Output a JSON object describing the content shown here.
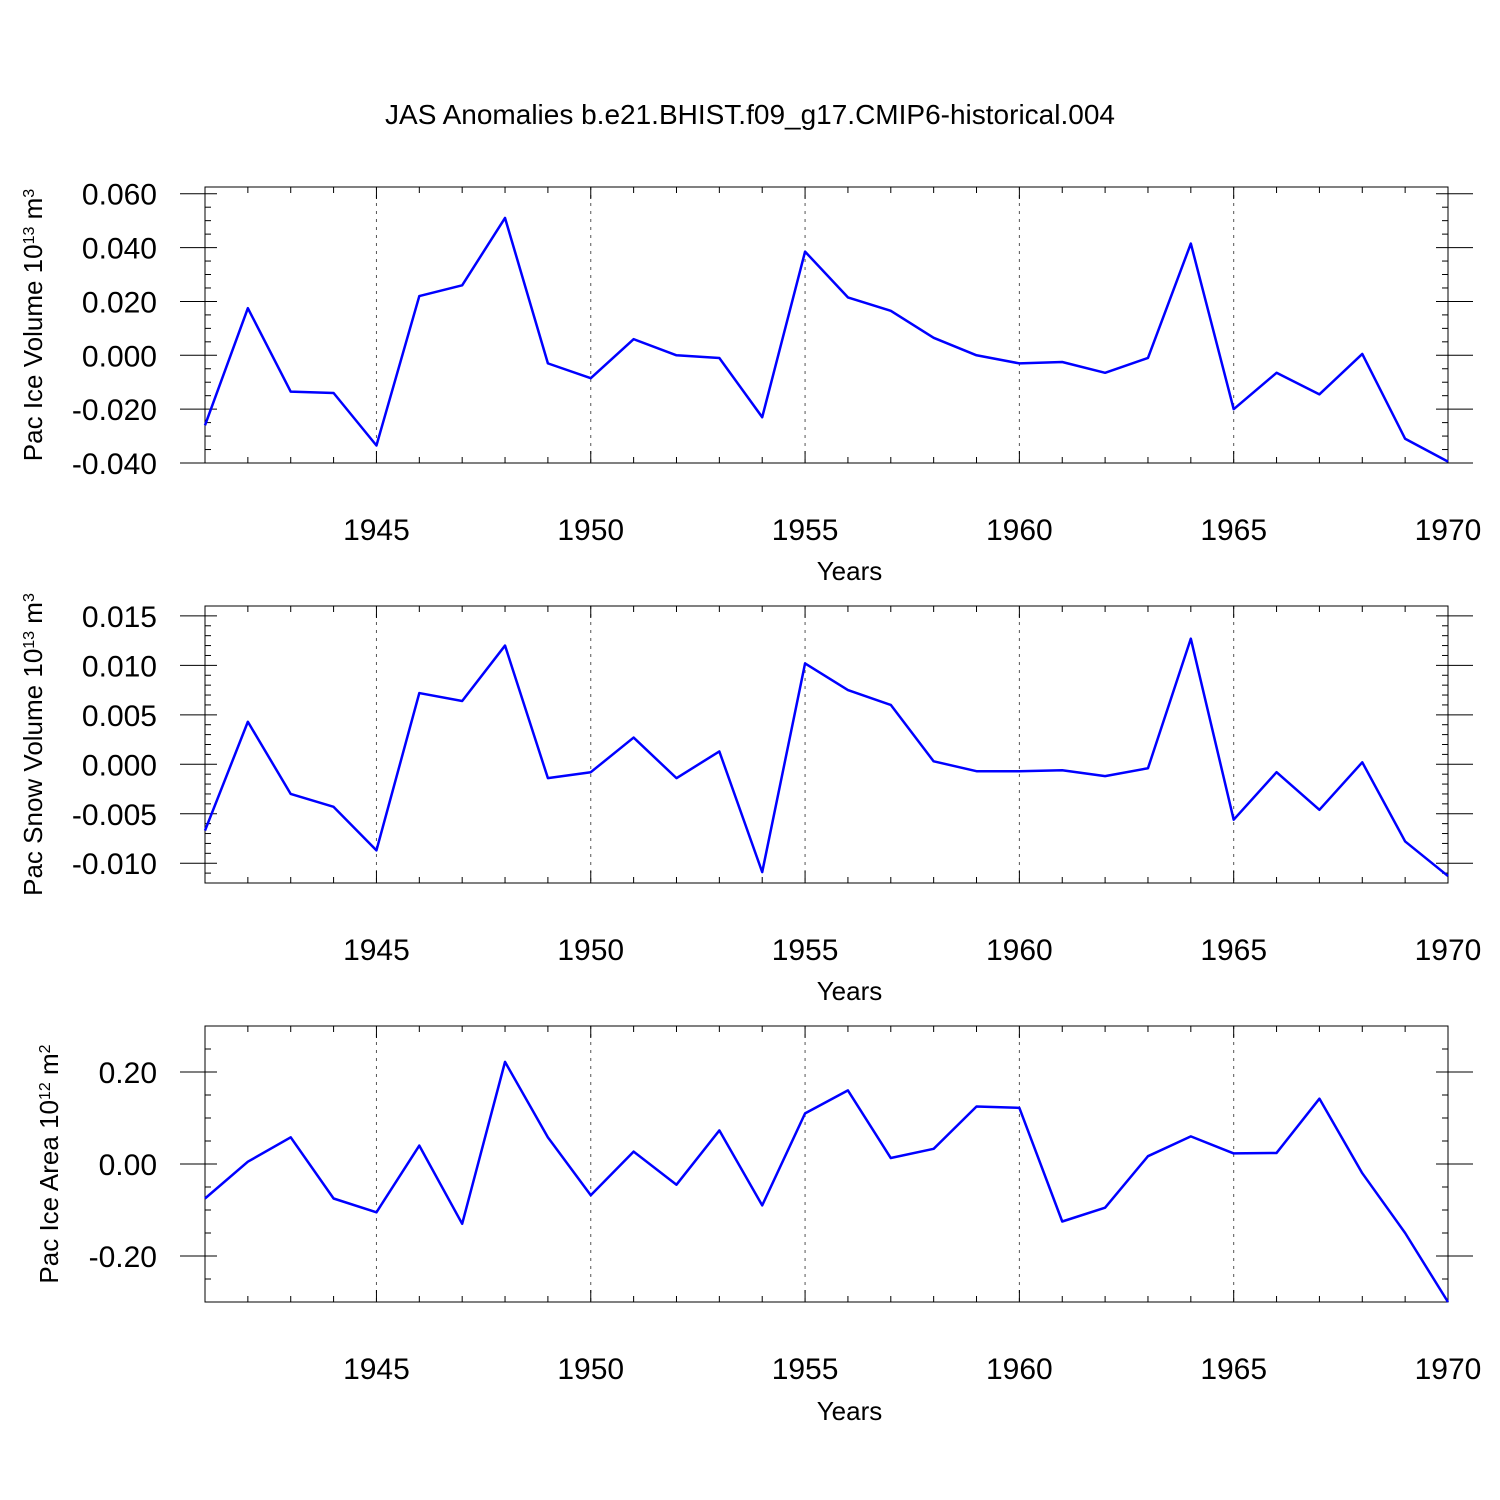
{
  "title": "JAS Anomalies b.e21.BHIST.f09_g17.CMIP6-historical.004",
  "colors": {
    "line": "#0000ff",
    "axis": "#000000"
  },
  "chart_data": [
    {
      "type": "line",
      "ylabel": {
        "base": "Pac Ice Volume 10",
        "exp1": "13",
        "mid": " m",
        "exp2": "3"
      },
      "xlabel": "Years",
      "xlim": [
        1941,
        1970
      ],
      "ylim": [
        -0.04,
        0.0625
      ],
      "yticks": [
        -0.04,
        -0.02,
        0.0,
        0.02,
        0.04,
        0.06
      ],
      "ytick_labels": [
        "-0.040",
        "-0.020",
        "0.000",
        "0.020",
        "0.040",
        "0.060"
      ],
      "yminor_step": 0.005,
      "xticks": [
        1945,
        1950,
        1955,
        1960,
        1965,
        1970
      ],
      "xtick_labels": [
        "1945",
        "1950",
        "1955",
        "1960",
        "1965",
        "1970"
      ],
      "grid": "x-dashed",
      "x": [
        1941,
        1942,
        1943,
        1944,
        1945,
        1946,
        1947,
        1948,
        1949,
        1950,
        1951,
        1952,
        1953,
        1954,
        1955,
        1956,
        1957,
        1958,
        1959,
        1960,
        1961,
        1962,
        1963,
        1964,
        1965,
        1966,
        1967,
        1968,
        1969,
        1970
      ],
      "values": [
        -0.026,
        0.0175,
        -0.0135,
        -0.014,
        -0.0335,
        0.022,
        0.026,
        0.051,
        -0.003,
        -0.0085,
        0.006,
        0.0,
        -0.001,
        -0.023,
        0.0385,
        0.0215,
        0.0165,
        0.0065,
        0.0,
        -0.003,
        -0.0025,
        -0.0065,
        -0.001,
        0.0415,
        -0.02,
        -0.0065,
        -0.0145,
        0.0005,
        -0.031,
        -0.0395
      ]
    },
    {
      "type": "line",
      "ylabel": {
        "base": "Pac Snow Volume 10",
        "exp1": "13",
        "mid": " m",
        "exp2": "3"
      },
      "xlabel": "Years",
      "xlim": [
        1941,
        1970
      ],
      "ylim": [
        -0.012,
        0.016
      ],
      "yticks": [
        -0.01,
        -0.005,
        0.0,
        0.005,
        0.01,
        0.015
      ],
      "ytick_labels": [
        "-0.010",
        "-0.005",
        "0.000",
        "0.005",
        "0.010",
        "0.015"
      ],
      "yminor_step": 0.001,
      "xticks": [
        1945,
        1950,
        1955,
        1960,
        1965,
        1970
      ],
      "xtick_labels": [
        "1945",
        "1950",
        "1955",
        "1960",
        "1965",
        "1970"
      ],
      "grid": "x-dashed",
      "x": [
        1941,
        1942,
        1943,
        1944,
        1945,
        1946,
        1947,
        1948,
        1949,
        1950,
        1951,
        1952,
        1953,
        1954,
        1955,
        1956,
        1957,
        1958,
        1959,
        1960,
        1961,
        1962,
        1963,
        1964,
        1965,
        1966,
        1967,
        1968,
        1969,
        1970
      ],
      "values": [
        -0.0067,
        0.0043,
        -0.003,
        -0.0043,
        -0.0087,
        0.0072,
        0.0064,
        0.012,
        -0.0014,
        -0.0008,
        0.0027,
        -0.0014,
        0.0013,
        -0.0109,
        0.0102,
        0.0075,
        0.006,
        0.0003,
        -0.0007,
        -0.0007,
        -0.0006,
        -0.0012,
        -0.0004,
        0.0127,
        -0.0056,
        -0.0008,
        -0.0046,
        0.0002,
        -0.0078,
        -0.0113
      ]
    },
    {
      "type": "line",
      "ylabel": {
        "base": "Pac Ice Area 10",
        "exp1": "12",
        "mid": " m",
        "exp2": "2"
      },
      "xlabel": "Years",
      "xlim": [
        1941,
        1970
      ],
      "ylim": [
        -0.3,
        0.3
      ],
      "yticks": [
        -0.2,
        0.0,
        0.2
      ],
      "ytick_labels": [
        "-0.20",
        "0.00",
        "0.20"
      ],
      "yminor_step": 0.05,
      "xticks": [
        1945,
        1950,
        1955,
        1960,
        1965,
        1970
      ],
      "xtick_labels": [
        "1945",
        "1950",
        "1955",
        "1960",
        "1965",
        "1970"
      ],
      "grid": "x-dashed",
      "x": [
        1941,
        1942,
        1943,
        1944,
        1945,
        1946,
        1947,
        1948,
        1949,
        1950,
        1951,
        1952,
        1953,
        1954,
        1955,
        1956,
        1957,
        1958,
        1959,
        1960,
        1961,
        1962,
        1963,
        1964,
        1965,
        1966,
        1967,
        1968,
        1969,
        1970
      ],
      "values": [
        -0.075,
        0.005,
        0.058,
        -0.075,
        -0.105,
        0.04,
        -0.13,
        0.222,
        0.058,
        -0.068,
        0.027,
        -0.045,
        0.073,
        -0.09,
        0.11,
        0.16,
        0.013,
        0.033,
        0.125,
        0.122,
        -0.125,
        -0.095,
        0.017,
        0.06,
        0.023,
        0.024,
        0.142,
        -0.02,
        -0.15,
        -0.3
      ]
    }
  ]
}
